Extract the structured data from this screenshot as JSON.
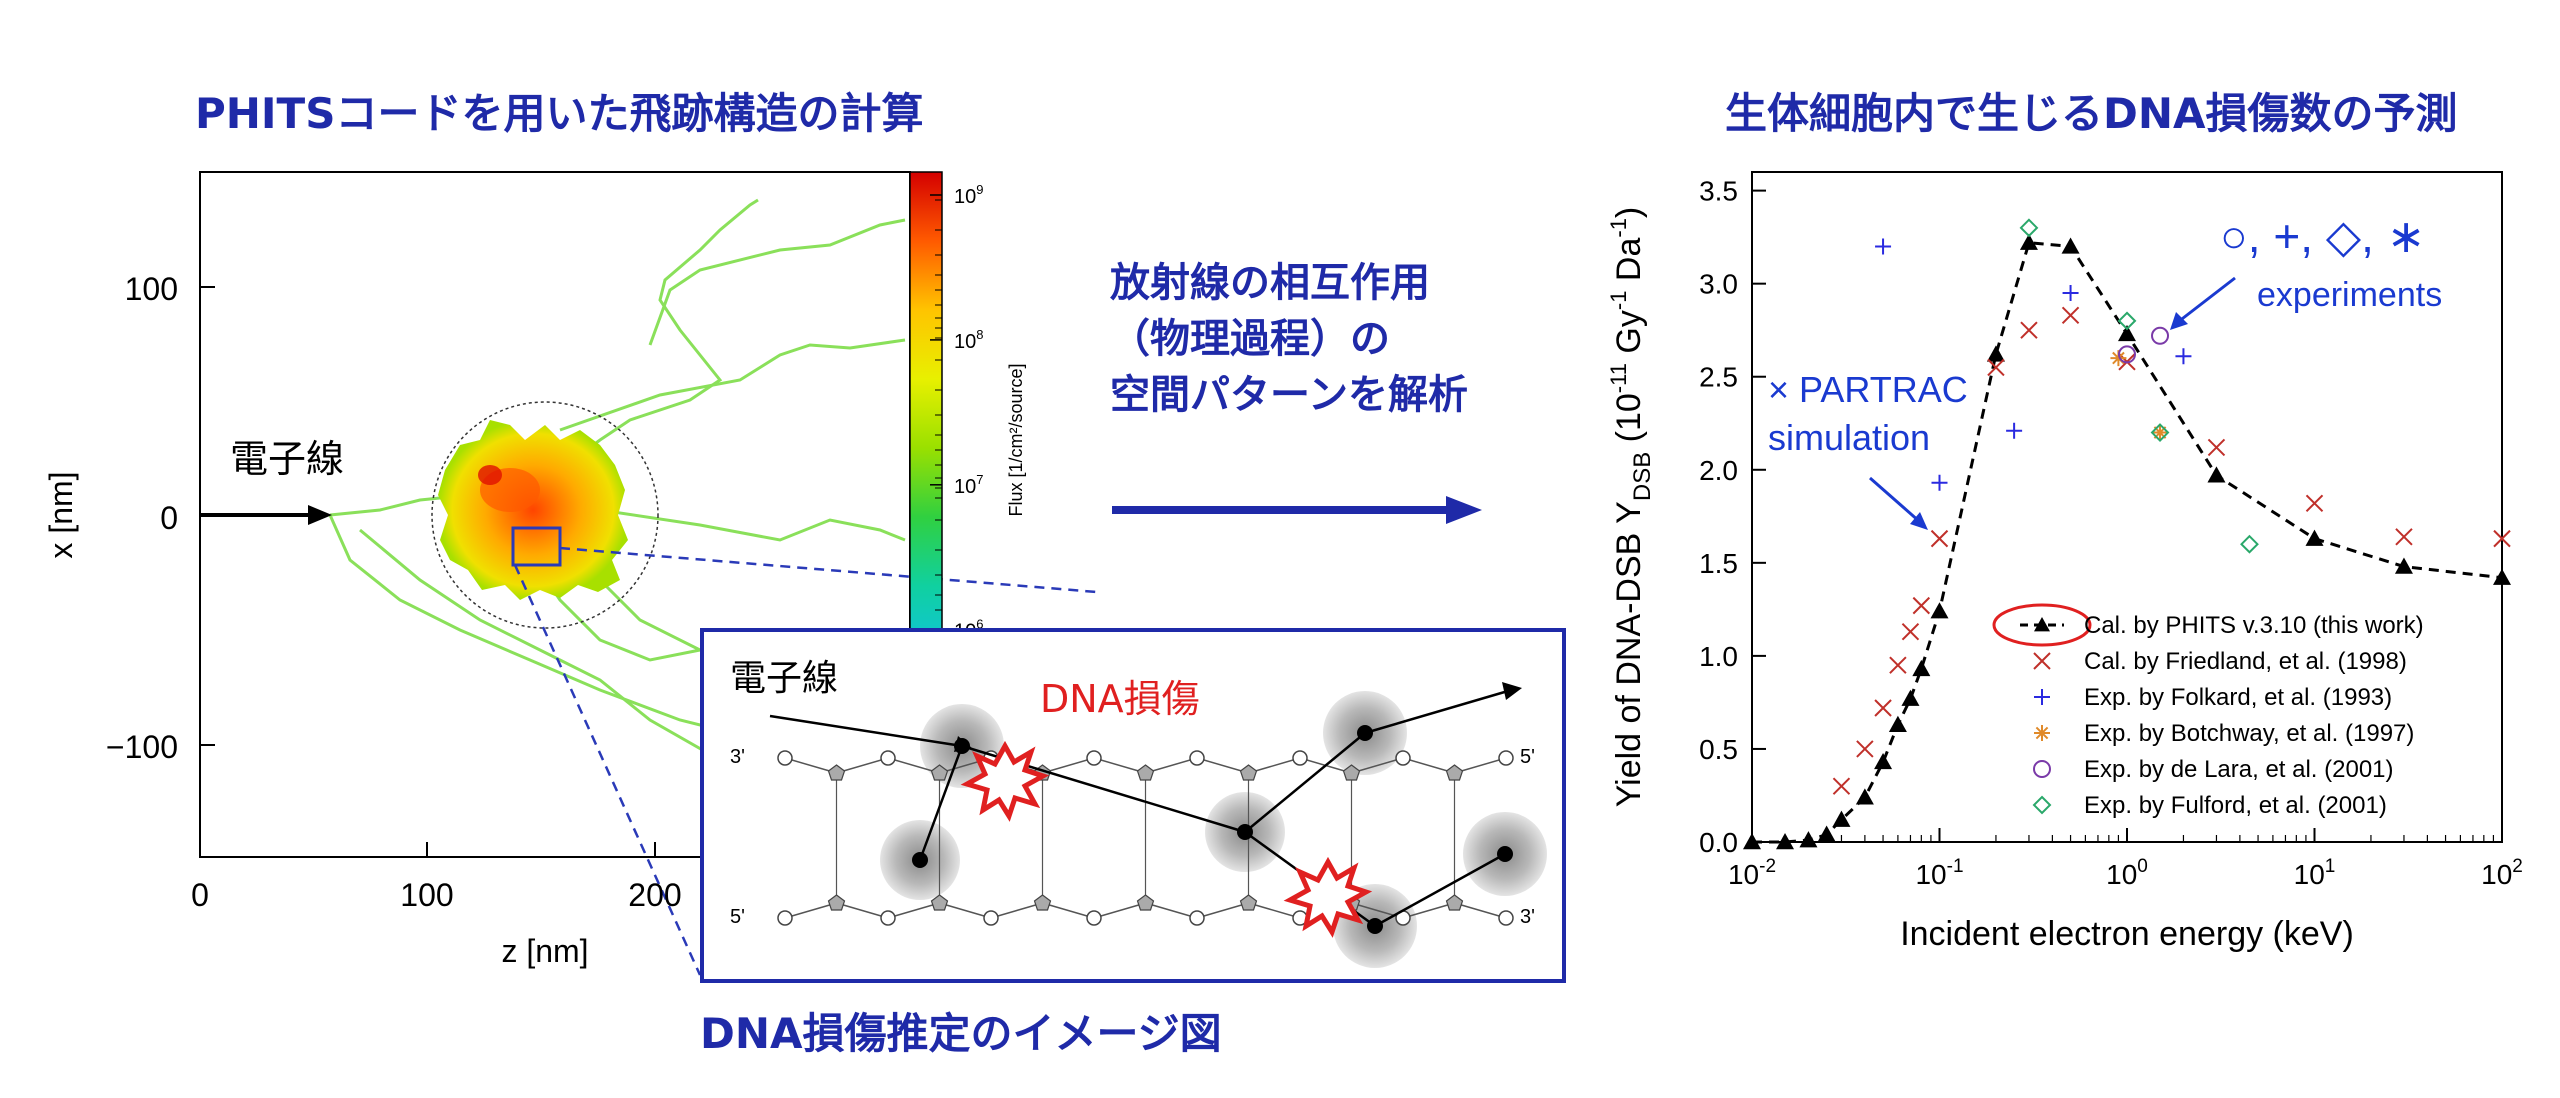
{
  "titles": {
    "left": "PHITSコードを用いた飛跡構造の計算",
    "right": "生体細胞内で生じるDNA損傷数の予測",
    "bottom": "DNA損傷推定のイメージ図"
  },
  "middle_text": [
    "放射線の相互作用",
    "（物理過程）の",
    "空間パターンを解析"
  ],
  "track_plot": {
    "xlabel": "z [nm]",
    "ylabel": "x [nm]",
    "xticks": [
      "0",
      "100",
      "200"
    ],
    "yticks": [
      "100",
      "0",
      "−100"
    ],
    "beam_label": "電子線",
    "colorbar_label": "Flux [1/cm²/source]",
    "colorbar_ticks": [
      {
        "base": "10",
        "exp": "9",
        "frac": 0.05
      },
      {
        "base": "10",
        "exp": "8",
        "frac": 0.365
      },
      {
        "base": "10",
        "exp": "7",
        "frac": 0.68
      },
      {
        "base": "10",
        "exp": "6",
        "frac": 0.995
      }
    ]
  },
  "dna_inset": {
    "beam_label": "電子線",
    "damage_label": "DNA損傷",
    "end_labels": {
      "top_left": "3'",
      "top_right": "5'",
      "bottom_left": "5'",
      "bottom_right": "3'"
    }
  },
  "chart_data": {
    "type": "scatter",
    "xlabel": "Incident electron energy (keV)",
    "ylabel_main": "Yield of DNA-DSB Y",
    "ylabel_sub": "DSB",
    "ylabel_unit": " (10",
    "ylabel_exp1": "-11",
    "ylabel_mid": " Gy",
    "ylabel_exp2": "-1",
    "ylabel_end": " Da",
    "ylabel_exp3": "-1",
    "ylabel_close": ")",
    "xscale": "log",
    "xlim": [
      0.01,
      100
    ],
    "ylim": [
      0,
      3.6
    ],
    "xticks": [
      {
        "value": 0.01,
        "base": "10",
        "exp": "-2"
      },
      {
        "value": 0.1,
        "base": "10",
        "exp": "-1"
      },
      {
        "value": 1,
        "base": "10",
        "exp": "0"
      },
      {
        "value": 10,
        "base": "10",
        "exp": "1"
      },
      {
        "value": 100,
        "base": "10",
        "exp": "2"
      }
    ],
    "yticks": [
      "0.0",
      "0.5",
      "1.0",
      "1.5",
      "2.0",
      "2.5",
      "3.0",
      "3.5"
    ],
    "legend_position": "bottom-right",
    "series": [
      {
        "name": "Cal. by PHITS v.3.10 (this work)",
        "marker": "triangle-dashed",
        "color": "#000000",
        "x": [
          0.01,
          0.015,
          0.02,
          0.025,
          0.03,
          0.04,
          0.05,
          0.06,
          0.07,
          0.08,
          0.1,
          0.2,
          0.3,
          0.5,
          1,
          3,
          10,
          30,
          100
        ],
        "y": [
          0.0,
          0.0,
          0.01,
          0.04,
          0.12,
          0.24,
          0.43,
          0.63,
          0.77,
          0.93,
          1.24,
          2.62,
          3.22,
          3.2,
          2.73,
          1.97,
          1.63,
          1.48,
          1.42
        ]
      },
      {
        "name": "Cal. by Friedland, et al. (1998)",
        "marker": "x",
        "color": "#c0302a",
        "x": [
          0.03,
          0.04,
          0.05,
          0.06,
          0.07,
          0.08,
          0.1,
          0.2,
          0.3,
          0.5,
          1,
          3,
          10,
          30,
          100
        ],
        "y": [
          0.3,
          0.5,
          0.72,
          0.95,
          1.13,
          1.27,
          1.63,
          2.55,
          2.75,
          2.83,
          2.58,
          2.12,
          1.82,
          1.64,
          1.63
        ]
      },
      {
        "name": "Exp. by Folkard, et al. (1993)",
        "marker": "plus",
        "color": "#2a2ae0",
        "x": [
          0.05,
          0.1,
          0.25,
          0.5,
          2
        ],
        "y": [
          3.2,
          1.93,
          2.21,
          2.95,
          2.61
        ]
      },
      {
        "name": "Exp. by Botchway, et al. (1997)",
        "marker": "asterisk",
        "color": "#e08a2a",
        "x": [
          0.9,
          1.5
        ],
        "y": [
          2.6,
          2.2
        ]
      },
      {
        "name": "Exp. by de Lara, et al. (2001)",
        "marker": "circle",
        "color": "#7a3aa8",
        "x": [
          1.0,
          1.5
        ],
        "y": [
          2.62,
          2.72
        ]
      },
      {
        "name": "Exp. by Fulford, et al. (2001)",
        "marker": "diamond",
        "color": "#2aa86a",
        "x": [
          0.3,
          1.0,
          1.5,
          4.5
        ],
        "y": [
          3.3,
          2.8,
          2.2,
          1.6
        ]
      }
    ],
    "annotations": {
      "experiments_symbols": "○, +, ◇, ∗",
      "experiments_label": "experiments",
      "partrac_line1": "× PARTRAC",
      "partrac_line2": "simulation"
    }
  },
  "colors": {
    "title_blue": "#1f2aa8",
    "annotation_blue": "#1a3ad0",
    "damage_red": "#e02020",
    "track_green": "#7ed957"
  }
}
